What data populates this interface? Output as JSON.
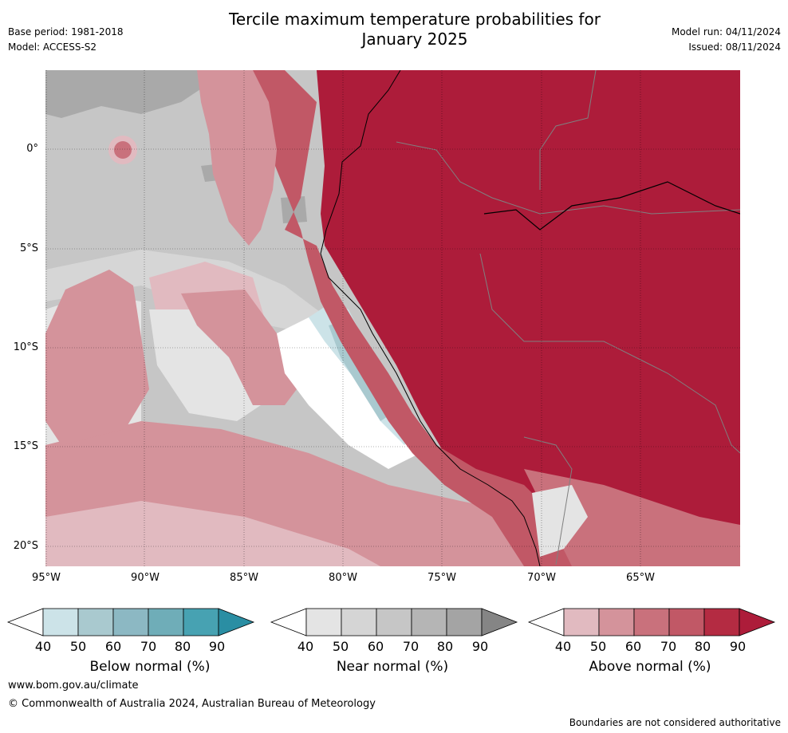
{
  "header": {
    "title_line1": "Tercile maximum temperature probabilities for",
    "title_line2": "January 2025",
    "base_period": "Base period: 1981-2018",
    "model": "Model: ACCESS-S2",
    "model_run": "Model run: 04/11/2024",
    "issued": "Issued: 08/11/2024"
  },
  "map": {
    "lat_ticks": [
      "0°",
      "5°S",
      "10°S",
      "15°S",
      "20°S"
    ],
    "lon_ticks": [
      "95°W",
      "90°W",
      "85°W",
      "80°W",
      "75°W",
      "70°W",
      "65°W"
    ]
  },
  "legend": {
    "below": {
      "label": "Below normal (%)",
      "ticks": [
        "40",
        "50",
        "60",
        "70",
        "80",
        "90"
      ],
      "colors": [
        "#ffffff",
        "#cce3e8",
        "#a9c9cf",
        "#8cb8c3",
        "#6fadb8",
        "#47a2b2",
        "#2a8ea3"
      ]
    },
    "near": {
      "label": "Near normal (%)",
      "ticks": [
        "40",
        "50",
        "60",
        "70",
        "80",
        "90"
      ],
      "colors": [
        "#ffffff",
        "#e4e4e4",
        "#d5d5d5",
        "#c6c6c6",
        "#b5b5b5",
        "#a4a4a4",
        "#858585"
      ]
    },
    "above": {
      "label": "Above normal (%)",
      "ticks": [
        "40",
        "50",
        "60",
        "70",
        "80",
        "90"
      ],
      "colors": [
        "#ffffff",
        "#e1bac0",
        "#d4939b",
        "#c9717c",
        "#c15866",
        "#b42b42",
        "#ad1c3a"
      ]
    }
  },
  "footer": {
    "website": "www.bom.gov.au/climate",
    "copyright": "© Commonwealth of Australia 2024, Australian Bureau of Meteorology",
    "disclaimer": "Boundaries are not considered authoritative"
  }
}
